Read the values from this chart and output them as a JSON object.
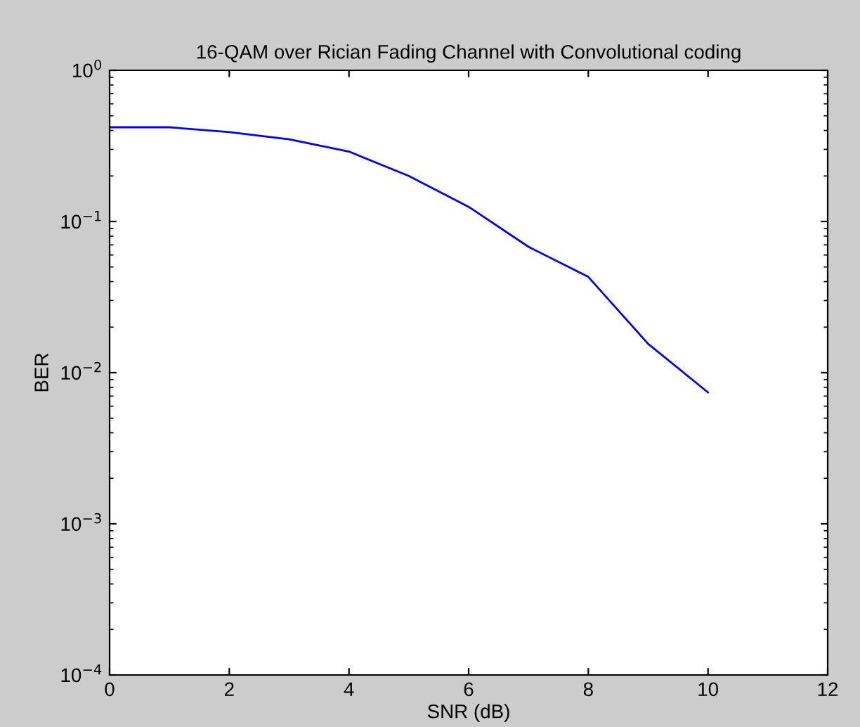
{
  "chart_data": {
    "type": "line",
    "title": "16-QAM over Rician Fading Channel with Convolutional coding",
    "xlabel": "SNR (dB)",
    "ylabel": "BER",
    "log": "y",
    "x": [
      0,
      1,
      2,
      3,
      4,
      5,
      6,
      7,
      8,
      9,
      10
    ],
    "series": [
      {
        "color": "#0000ff",
        "values": [
          0.42,
          0.42,
          0.39,
          0.35,
          0.29,
          0.2,
          0.125,
          0.068,
          0.043,
          0.0155,
          0.0074
        ]
      }
    ],
    "xlim": [
      0,
      12
    ],
    "xticks": [
      0,
      2,
      4,
      6,
      8,
      10,
      12
    ],
    "ylim": [
      0.0001,
      1
    ],
    "yticks": [
      {
        "value": 0.0001,
        "label": "10$^{−4}$"
      },
      {
        "value": 0.001,
        "label": "10$^{−3}$"
      },
      {
        "value": 0.01,
        "label": "10$^{−2}$"
      },
      {
        "value": 0.1,
        "label": "10$^{−1}$"
      },
      {
        "value": 1,
        "label": "10$^{0}$"
      }
    ],
    "grid": false,
    "legend": false,
    "marker": "none",
    "line_style": "solid"
  }
}
